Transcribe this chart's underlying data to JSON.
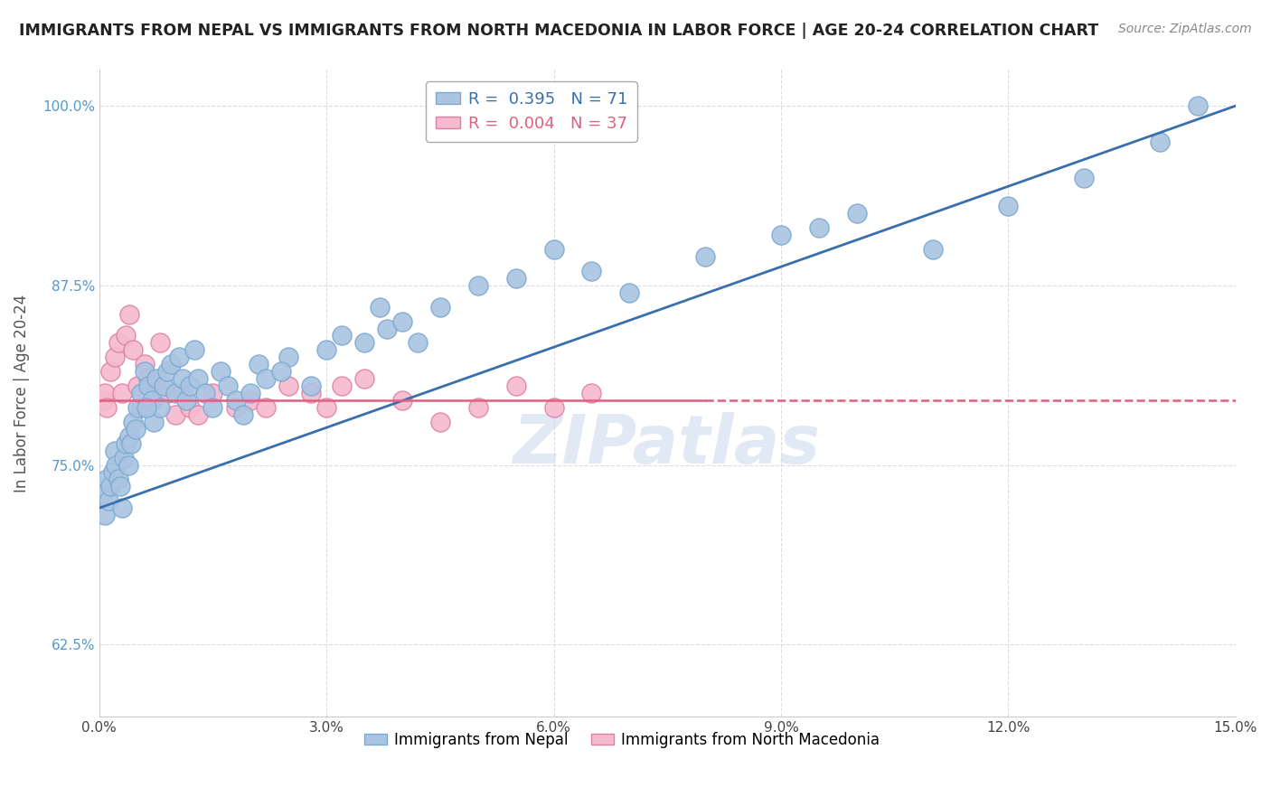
{
  "title": "IMMIGRANTS FROM NEPAL VS IMMIGRANTS FROM NORTH MACEDONIA IN LABOR FORCE | AGE 20-24 CORRELATION CHART",
  "source": "Source: ZipAtlas.com",
  "xlabel_blue": "Immigrants from Nepal",
  "xlabel_pink": "Immigrants from North Macedonia",
  "ylabel": "In Labor Force | Age 20-24",
  "xlim": [
    0.0,
    15.0
  ],
  "ylim": [
    57.5,
    102.5
  ],
  "yticks": [
    62.5,
    75.0,
    87.5,
    100.0
  ],
  "xticks": [
    0.0,
    3.0,
    6.0,
    9.0,
    12.0,
    15.0
  ],
  "blue_R": 0.395,
  "blue_N": 71,
  "pink_R": 0.004,
  "pink_N": 37,
  "blue_color": "#aac4e2",
  "blue_edge": "#7aaad0",
  "pink_color": "#f5bace",
  "pink_edge": "#e080a8",
  "blue_line_color": "#3a6fae",
  "pink_line_color": "#e06080",
  "watermark_color": "#c8d8ec",
  "background_color": "#ffffff",
  "grid_color": "#dddddd",
  "nepal_x": [
    0.05,
    0.08,
    0.1,
    0.12,
    0.15,
    0.18,
    0.2,
    0.22,
    0.25,
    0.28,
    0.3,
    0.32,
    0.35,
    0.38,
    0.4,
    0.42,
    0.45,
    0.48,
    0.5,
    0.55,
    0.6,
    0.65,
    0.7,
    0.72,
    0.75,
    0.8,
    0.85,
    0.9,
    0.95,
    1.0,
    1.05,
    1.1,
    1.15,
    1.2,
    1.3,
    1.4,
    1.5,
    1.6,
    1.7,
    1.8,
    1.9,
    2.0,
    2.1,
    2.2,
    2.5,
    2.8,
    3.0,
    3.2,
    3.5,
    3.8,
    4.0,
    4.2,
    4.5,
    5.0,
    5.5,
    6.0,
    7.0,
    8.0,
    9.0,
    10.0,
    11.0,
    12.0,
    13.0,
    14.0,
    14.5,
    1.25,
    0.62,
    2.4,
    3.7,
    6.5,
    9.5
  ],
  "nepal_y": [
    73.0,
    71.5,
    74.0,
    72.5,
    73.5,
    74.5,
    76.0,
    75.0,
    74.0,
    73.5,
    72.0,
    75.5,
    76.5,
    75.0,
    77.0,
    76.5,
    78.0,
    77.5,
    79.0,
    80.0,
    81.5,
    80.5,
    79.5,
    78.0,
    81.0,
    79.0,
    80.5,
    81.5,
    82.0,
    80.0,
    82.5,
    81.0,
    79.5,
    80.5,
    81.0,
    80.0,
    79.0,
    81.5,
    80.5,
    79.5,
    78.5,
    80.0,
    82.0,
    81.0,
    82.5,
    80.5,
    83.0,
    84.0,
    83.5,
    84.5,
    85.0,
    83.5,
    86.0,
    87.5,
    88.0,
    90.0,
    87.0,
    89.5,
    91.0,
    92.5,
    90.0,
    93.0,
    95.0,
    97.5,
    100.0,
    83.0,
    79.0,
    81.5,
    86.0,
    88.5,
    91.5
  ],
  "macedonia_x": [
    0.05,
    0.08,
    0.1,
    0.15,
    0.2,
    0.25,
    0.3,
    0.35,
    0.4,
    0.45,
    0.5,
    0.55,
    0.6,
    0.65,
    0.7,
    0.75,
    0.8,
    0.9,
    1.0,
    1.1,
    1.2,
    1.3,
    1.5,
    1.8,
    2.0,
    2.2,
    2.5,
    2.8,
    3.0,
    3.2,
    3.5,
    4.0,
    4.5,
    5.0,
    5.5,
    6.0,
    6.5
  ],
  "macedonia_y": [
    79.5,
    80.0,
    79.0,
    81.5,
    82.5,
    83.5,
    80.0,
    84.0,
    85.5,
    83.0,
    80.5,
    79.0,
    82.0,
    81.0,
    79.5,
    80.0,
    83.5,
    80.0,
    78.5,
    80.0,
    79.0,
    78.5,
    80.0,
    79.0,
    79.5,
    79.0,
    80.5,
    80.0,
    79.0,
    80.5,
    81.0,
    79.5,
    78.0,
    79.0,
    80.5,
    79.0,
    80.0
  ],
  "blue_line_x0": 0.0,
  "blue_line_y0": 72.0,
  "blue_line_x1": 15.0,
  "blue_line_y1": 100.0,
  "pink_line_x0": 0.0,
  "pink_line_y0": 79.5,
  "pink_line_x1": 8.0,
  "pink_line_y1": 79.5,
  "pink_dash_x0": 8.0,
  "pink_dash_y0": 79.5,
  "pink_dash_x1": 15.0,
  "pink_dash_y1": 79.5
}
